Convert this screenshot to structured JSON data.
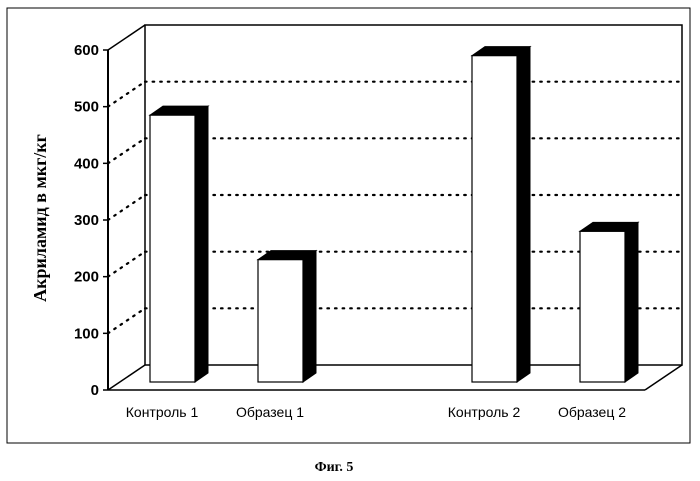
{
  "chart_data": {
    "type": "bar",
    "categories": [
      "Контроль 1",
      "Образец 1",
      "Контроль 2",
      "Образец 2"
    ],
    "values": [
      485,
      230,
      590,
      280
    ],
    "ylabel": "Акриламид в мкг/кг",
    "xlabel": "",
    "ylim": [
      0,
      600
    ],
    "yticks": [
      "0",
      "100",
      "200",
      "300",
      "400",
      "500",
      "600"
    ],
    "grid": true,
    "style": "3d"
  },
  "caption": "Фиг. 5",
  "colors": {
    "bar_face": "#ffffff",
    "bar_side": "#000000",
    "axis": "#000000"
  }
}
